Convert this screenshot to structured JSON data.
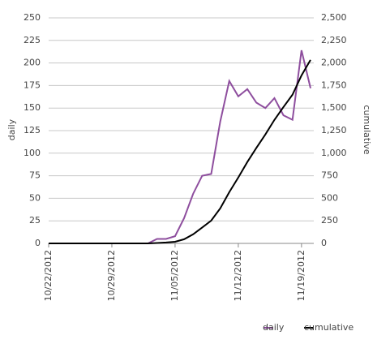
{
  "chart_data": {
    "type": "line",
    "categories": [
      "10/22/2012",
      null,
      null,
      null,
      null,
      null,
      null,
      "10/29/2012",
      null,
      null,
      null,
      null,
      null,
      null,
      "11/05/2012",
      null,
      null,
      null,
      null,
      null,
      null,
      "11/12/2012",
      null,
      null,
      null,
      null,
      null,
      null,
      "11/19/2012",
      null
    ],
    "series": [
      {
        "name": "daily",
        "color": "#8e4e9e",
        "axis": "y",
        "values": [
          0,
          0,
          0,
          0,
          0,
          0,
          0,
          0,
          0,
          0,
          0,
          0,
          5,
          5,
          8,
          28,
          55,
          75,
          77,
          135,
          180,
          163,
          171,
          156,
          150,
          161,
          142,
          137,
          214,
          172
        ]
      },
      {
        "name": "cumulative",
        "color": "#000000",
        "axis": "y2",
        "values": [
          0,
          0,
          0,
          0,
          0,
          0,
          0,
          0,
          0,
          0,
          0,
          0,
          5,
          10,
          18,
          46,
          101,
          176,
          253,
          388,
          568,
          731,
          902,
          1058,
          1208,
          1369,
          1511,
          1648,
          1862,
          2034
        ]
      }
    ],
    "ylabel": "daily",
    "y2label": "cumulative",
    "ylim": [
      0,
      250
    ],
    "yticks": [
      0,
      25,
      50,
      75,
      100,
      125,
      150,
      175,
      200,
      225,
      250
    ],
    "y2lim": [
      0,
      2500
    ],
    "y2ticks": [
      0,
      250,
      500,
      750,
      {
        "value": 1000,
        "label": "1,000"
      },
      {
        "value": 1250,
        "label": "1,250"
      },
      {
        "value": 1500,
        "label": "1,500"
      },
      {
        "value": 1750,
        "label": "1,750"
      },
      {
        "value": 2000,
        "label": "2,000"
      },
      {
        "value": 2250,
        "label": "2,250"
      },
      {
        "value": 2500,
        "label": "2,500"
      }
    ],
    "grid": true,
    "legend": "bottom-right"
  }
}
